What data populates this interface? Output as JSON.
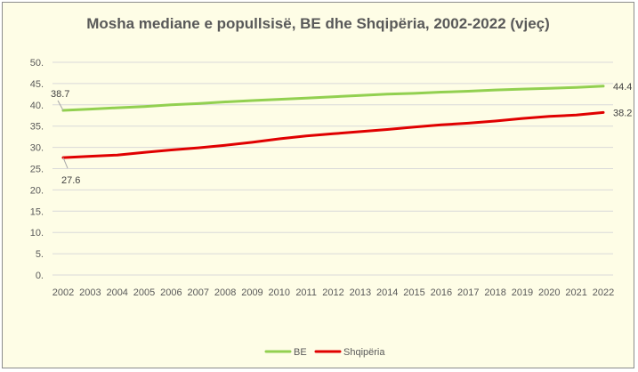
{
  "chart_data": {
    "type": "line",
    "title": "Mosha mediane e popullsisë, BE dhe Shqipëria, 2002-2022 (vjeç)",
    "xlabel": "",
    "ylabel": "",
    "x": [
      "2002",
      "2003",
      "2004",
      "2005",
      "2006",
      "2007",
      "2008",
      "2009",
      "2010",
      "2011",
      "2012",
      "2013",
      "2014",
      "2015",
      "2016",
      "2017",
      "2018",
      "2019",
      "2020",
      "2021",
      "2022"
    ],
    "y_ticks": [
      "0.",
      "5.",
      "10.",
      "15.",
      "20.",
      "25.",
      "30.",
      "35.",
      "40.",
      "45.",
      "50."
    ],
    "ylim": [
      0,
      50
    ],
    "grid": true,
    "legend_position": "bottom",
    "series": [
      {
        "name": "BE",
        "color": "#92d050",
        "values": [
          38.7,
          39.0,
          39.3,
          39.6,
          40.0,
          40.3,
          40.7,
          41.0,
          41.3,
          41.6,
          41.9,
          42.2,
          42.5,
          42.7,
          43.0,
          43.2,
          43.5,
          43.7,
          43.9,
          44.1,
          44.4
        ],
        "labels": [
          {
            "index": 0,
            "text": "38.7"
          },
          {
            "index": 20,
            "text": "44.4"
          }
        ]
      },
      {
        "name": "Shqipëria",
        "color": "#e00000",
        "values": [
          27.6,
          27.9,
          28.2,
          28.8,
          29.4,
          29.9,
          30.5,
          31.2,
          32.0,
          32.7,
          33.2,
          33.7,
          34.2,
          34.8,
          35.3,
          35.7,
          36.2,
          36.8,
          37.3,
          37.6,
          38.2
        ],
        "labels": [
          {
            "index": 0,
            "text": "27.6"
          },
          {
            "index": 20,
            "text": "38.2"
          }
        ]
      }
    ]
  }
}
